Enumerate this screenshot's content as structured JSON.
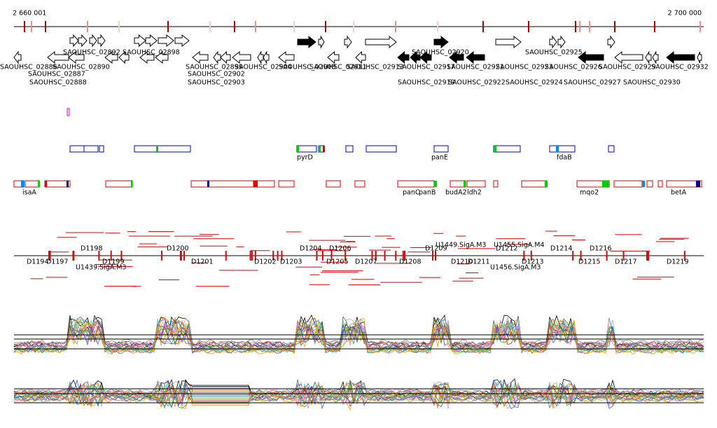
{
  "ruler": {
    "start": "2 660 001",
    "end": "2 700 000"
  },
  "genes": [
    "SAOUHSC_02892",
    "SAOUHSC_02898",
    "SAOUHSC_02920",
    "SAOUHSC_02925",
    "SAOUHSC_02886",
    "SAOUHSC_02890",
    "SAOUHSC_02899",
    "SAOUHSC_02904",
    "SAOUHSC_02908",
    "SAOUHSC_02911",
    "SAOUHSC_02913",
    "SAOUHSC_02917",
    "SAOUHSC_02921",
    "SAOUHSC_02923",
    "SAOUHSC_02926",
    "SAOUHSC_02929",
    "SAOUHSC_02932",
    "SAOUHSC_02887",
    "SAOUHSC_02902",
    "SAOUHSC_02888",
    "SAOUHSC_02903",
    "SAOUHSC_02919",
    "SAOUHSC_02922",
    "SAOUHSC_02924",
    "SAOUHSC_02927",
    "SAOUHSC_02930"
  ],
  "features": [
    "pyrD",
    "panE",
    "fdaB",
    "isaA",
    "panC",
    "panB",
    "budA2",
    "ldh2",
    "mqo2",
    "betA"
  ],
  "probes": [
    "D1194",
    "D1197",
    "D1198",
    "D1199",
    "D1200",
    "D1201",
    "D1202",
    "D1203",
    "D1204",
    "D1205",
    "D1206",
    "D1207",
    "D1208",
    "D1209",
    "D1210",
    "D1211",
    "D1212",
    "D1213",
    "D1214",
    "D1215",
    "D1216",
    "D1217",
    "D1219",
    "U1439.SigA.M3",
    "U1449.SigA.M3",
    "U1455.SigA.M4",
    "U1456.SigA.M3"
  ]
}
